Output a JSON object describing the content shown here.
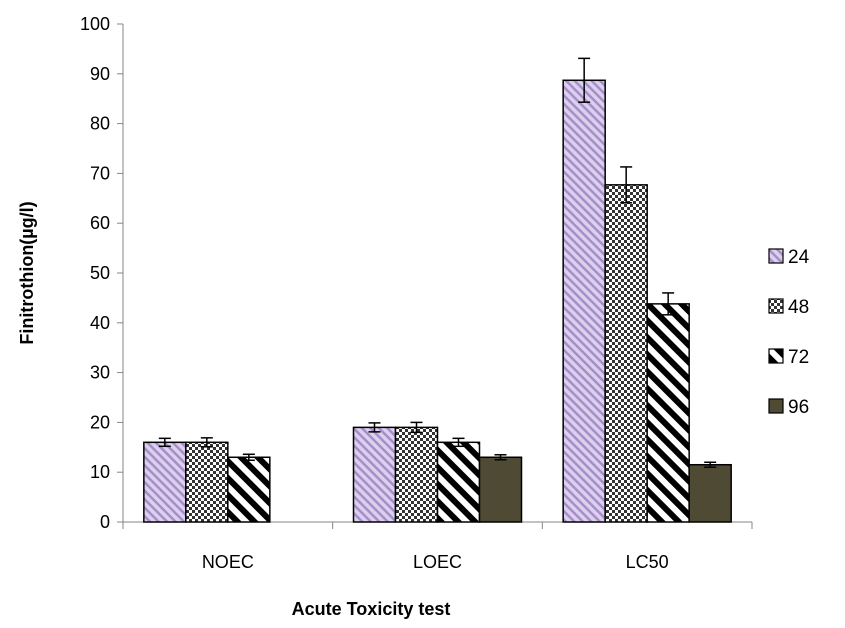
{
  "chart_data": {
    "type": "bar",
    "title": "",
    "xlabel": "Acute Toxicity test",
    "ylabel": "Finitrothion(µg/l)",
    "ylim": [
      0,
      100
    ],
    "yticks": [
      0,
      10,
      20,
      30,
      40,
      50,
      60,
      70,
      80,
      90,
      100
    ],
    "grid": false,
    "legend_position": "right",
    "categories": [
      "NOEC",
      "LOEC",
      "LC50"
    ],
    "series": [
      {
        "name": "24",
        "values": [
          16,
          19,
          88.7
        ],
        "errors": [
          0.8,
          0.9,
          4.4
        ],
        "pattern": "diag-stripes-lavender",
        "color": "#c9b8e0"
      },
      {
        "name": "48",
        "values": [
          16,
          19,
          67.7
        ],
        "errors": [
          0.9,
          1.0,
          3.6
        ],
        "pattern": "checker",
        "color": "#404040"
      },
      {
        "name": "72",
        "values": [
          13,
          16,
          43.8
        ],
        "errors": [
          0.6,
          0.8,
          2.2
        ],
        "pattern": "diag-stripes-bw",
        "color": "#000000"
      },
      {
        "name": "96",
        "values": [
          null,
          13,
          11.5
        ],
        "errors": [
          null,
          0.5,
          0.5
        ],
        "pattern": "solid",
        "color": "#4f4a33"
      }
    ]
  }
}
